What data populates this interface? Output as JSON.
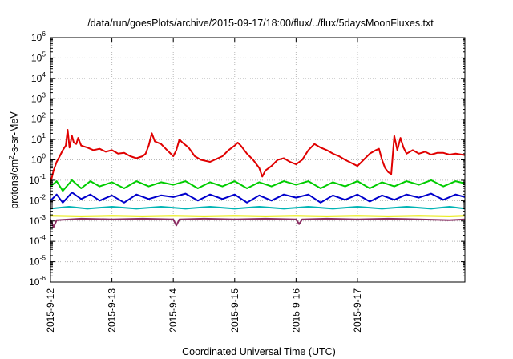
{
  "chart_data": {
    "type": "line",
    "title": "/data/run/goesPlots/archive/2015-09-17/18:00/flux/../flux/5daysMoonFluxes.txt",
    "xlabel": "Coordinated Universal Time (UTC)",
    "ylabel": {
      "prefix": "protons/cm",
      "sup": "2",
      "suffix": "-s-sr-MeV"
    },
    "yscale": "log",
    "ylim_exp": [
      -6,
      6
    ],
    "x_categories": [
      "2015-9-12",
      "2015-9-13",
      "2015-9-14",
      "2015-9-15",
      "2015-9-16",
      "2015-9-17"
    ],
    "xlim_days": [
      0,
      6.75
    ],
    "grid": true,
    "legend": "none",
    "series": [
      {
        "color": "#e8e800",
        "points": [
          [
            0,
            0.0018
          ],
          [
            0.5,
            0.0017
          ],
          [
            1,
            0.0018
          ],
          [
            1.5,
            0.0017
          ],
          [
            2,
            0.0018
          ],
          [
            2.5,
            0.0017
          ],
          [
            3,
            0.0018
          ],
          [
            3.5,
            0.0017
          ],
          [
            4,
            0.0018
          ],
          [
            4.5,
            0.0017
          ],
          [
            5,
            0.0018
          ],
          [
            5.5,
            0.0017
          ],
          [
            6,
            0.0018
          ],
          [
            6.5,
            0.0017
          ],
          [
            6.75,
            0.0018
          ]
        ]
      },
      {
        "color": "#8b2e63",
        "points": [
          [
            0,
            0.0012
          ],
          [
            0.05,
            0.0005
          ],
          [
            0.1,
            0.0011
          ],
          [
            0.5,
            0.0013
          ],
          [
            1,
            0.0012
          ],
          [
            1.5,
            0.0013
          ],
          [
            2,
            0.0012
          ],
          [
            2.05,
            0.0006
          ],
          [
            2.1,
            0.0012
          ],
          [
            2.5,
            0.0013
          ],
          [
            3,
            0.0012
          ],
          [
            3.5,
            0.0013
          ],
          [
            4,
            0.0012
          ],
          [
            4.05,
            0.0007
          ],
          [
            4.1,
            0.0012
          ],
          [
            4.5,
            0.0013
          ],
          [
            5,
            0.0012
          ],
          [
            5.5,
            0.0013
          ],
          [
            6,
            0.0012
          ],
          [
            6.5,
            0.0011
          ],
          [
            6.75,
            0.0012
          ]
        ]
      },
      {
        "color": "#00b4b4",
        "points": [
          [
            0,
            0.004
          ],
          [
            0.3,
            0.005
          ],
          [
            0.6,
            0.004
          ],
          [
            1,
            0.005
          ],
          [
            1.4,
            0.004
          ],
          [
            1.8,
            0.005
          ],
          [
            2.2,
            0.004
          ],
          [
            2.6,
            0.005
          ],
          [
            3,
            0.004
          ],
          [
            3.4,
            0.005
          ],
          [
            3.8,
            0.004
          ],
          [
            4.2,
            0.005
          ],
          [
            4.6,
            0.004
          ],
          [
            5,
            0.005
          ],
          [
            5.4,
            0.004
          ],
          [
            5.8,
            0.005
          ],
          [
            6.2,
            0.004
          ],
          [
            6.5,
            0.005
          ],
          [
            6.75,
            0.004
          ]
        ]
      },
      {
        "color": "#00cc00",
        "points": [
          [
            0,
            0.05
          ],
          [
            0.1,
            0.09
          ],
          [
            0.2,
            0.03
          ],
          [
            0.35,
            0.1
          ],
          [
            0.5,
            0.04
          ],
          [
            0.65,
            0.09
          ],
          [
            0.8,
            0.05
          ],
          [
            1,
            0.08
          ],
          [
            1.2,
            0.04
          ],
          [
            1.4,
            0.09
          ],
          [
            1.6,
            0.05
          ],
          [
            1.8,
            0.08
          ],
          [
            2,
            0.06
          ],
          [
            2.2,
            0.09
          ],
          [
            2.4,
            0.04
          ],
          [
            2.6,
            0.08
          ],
          [
            2.8,
            0.05
          ],
          [
            3,
            0.09
          ],
          [
            3.2,
            0.04
          ],
          [
            3.4,
            0.08
          ],
          [
            3.6,
            0.05
          ],
          [
            3.8,
            0.09
          ],
          [
            4,
            0.06
          ],
          [
            4.2,
            0.09
          ],
          [
            4.4,
            0.04
          ],
          [
            4.6,
            0.08
          ],
          [
            4.8,
            0.05
          ],
          [
            5,
            0.09
          ],
          [
            5.2,
            0.04
          ],
          [
            5.4,
            0.08
          ],
          [
            5.6,
            0.05
          ],
          [
            5.8,
            0.09
          ],
          [
            6,
            0.06
          ],
          [
            6.2,
            0.1
          ],
          [
            6.4,
            0.05
          ],
          [
            6.6,
            0.09
          ],
          [
            6.75,
            0.07
          ]
        ]
      },
      {
        "color": "#0000cc",
        "points": [
          [
            0,
            0.01
          ],
          [
            0.1,
            0.02
          ],
          [
            0.2,
            0.008
          ],
          [
            0.35,
            0.025
          ],
          [
            0.5,
            0.012
          ],
          [
            0.65,
            0.02
          ],
          [
            0.8,
            0.01
          ],
          [
            1,
            0.018
          ],
          [
            1.2,
            0.008
          ],
          [
            1.4,
            0.02
          ],
          [
            1.6,
            0.012
          ],
          [
            1.8,
            0.018
          ],
          [
            2,
            0.015
          ],
          [
            2.2,
            0.022
          ],
          [
            2.4,
            0.01
          ],
          [
            2.6,
            0.02
          ],
          [
            2.8,
            0.012
          ],
          [
            3,
            0.02
          ],
          [
            3.2,
            0.008
          ],
          [
            3.4,
            0.018
          ],
          [
            3.6,
            0.01
          ],
          [
            3.8,
            0.02
          ],
          [
            4,
            0.014
          ],
          [
            4.2,
            0.02
          ],
          [
            4.4,
            0.008
          ],
          [
            4.6,
            0.018
          ],
          [
            4.8,
            0.011
          ],
          [
            5,
            0.02
          ],
          [
            5.2,
            0.009
          ],
          [
            5.4,
            0.018
          ],
          [
            5.6,
            0.011
          ],
          [
            5.8,
            0.02
          ],
          [
            6,
            0.014
          ],
          [
            6.2,
            0.022
          ],
          [
            6.4,
            0.011
          ],
          [
            6.6,
            0.02
          ],
          [
            6.75,
            0.015
          ]
        ]
      },
      {
        "color": "#e00000",
        "points": [
          [
            0,
            0.07
          ],
          [
            0.05,
            0.3
          ],
          [
            0.1,
            0.8
          ],
          [
            0.15,
            1.5
          ],
          [
            0.2,
            3
          ],
          [
            0.25,
            5
          ],
          [
            0.28,
            30
          ],
          [
            0.31,
            4
          ],
          [
            0.35,
            15
          ],
          [
            0.38,
            7
          ],
          [
            0.42,
            6
          ],
          [
            0.45,
            12
          ],
          [
            0.5,
            5
          ],
          [
            0.6,
            4
          ],
          [
            0.7,
            3
          ],
          [
            0.8,
            3.5
          ],
          [
            0.9,
            2.5
          ],
          [
            1,
            3
          ],
          [
            1.1,
            2
          ],
          [
            1.2,
            2.2
          ],
          [
            1.3,
            1.5
          ],
          [
            1.4,
            1.2
          ],
          [
            1.5,
            1.5
          ],
          [
            1.55,
            2
          ],
          [
            1.6,
            5
          ],
          [
            1.65,
            20
          ],
          [
            1.7,
            8
          ],
          [
            1.8,
            6
          ],
          [
            1.9,
            3
          ],
          [
            2,
            1.5
          ],
          [
            2.05,
            3
          ],
          [
            2.1,
            10
          ],
          [
            2.15,
            7
          ],
          [
            2.25,
            4
          ],
          [
            2.35,
            1.5
          ],
          [
            2.45,
            1
          ],
          [
            2.6,
            0.8
          ],
          [
            2.8,
            1.5
          ],
          [
            2.9,
            3
          ],
          [
            3,
            5
          ],
          [
            3.05,
            7
          ],
          [
            3.1,
            5
          ],
          [
            3.2,
            2
          ],
          [
            3.3,
            1
          ],
          [
            3.4,
            0.4
          ],
          [
            3.45,
            0.15
          ],
          [
            3.5,
            0.3
          ],
          [
            3.6,
            0.5
          ],
          [
            3.7,
            1
          ],
          [
            3.8,
            1.2
          ],
          [
            3.9,
            0.8
          ],
          [
            4,
            0.6
          ],
          [
            4.1,
            1
          ],
          [
            4.2,
            3
          ],
          [
            4.3,
            6
          ],
          [
            4.4,
            4
          ],
          [
            4.5,
            3
          ],
          [
            4.6,
            2
          ],
          [
            4.7,
            1.5
          ],
          [
            4.8,
            1
          ],
          [
            4.9,
            0.7
          ],
          [
            5,
            0.5
          ],
          [
            5.1,
            1
          ],
          [
            5.2,
            2
          ],
          [
            5.3,
            3
          ],
          [
            5.35,
            3.5
          ],
          [
            5.4,
            1
          ],
          [
            5.45,
            0.4
          ],
          [
            5.5,
            0.25
          ],
          [
            5.55,
            0.2
          ],
          [
            5.6,
            15
          ],
          [
            5.65,
            3
          ],
          [
            5.7,
            12
          ],
          [
            5.75,
            4
          ],
          [
            5.8,
            2
          ],
          [
            5.9,
            3
          ],
          [
            6,
            2
          ],
          [
            6.1,
            2.5
          ],
          [
            6.2,
            1.8
          ],
          [
            6.3,
            2.2
          ],
          [
            6.4,
            2.2
          ],
          [
            6.5,
            1.8
          ],
          [
            6.6,
            2
          ],
          [
            6.7,
            1.8
          ],
          [
            6.75,
            1.7
          ]
        ]
      }
    ]
  }
}
